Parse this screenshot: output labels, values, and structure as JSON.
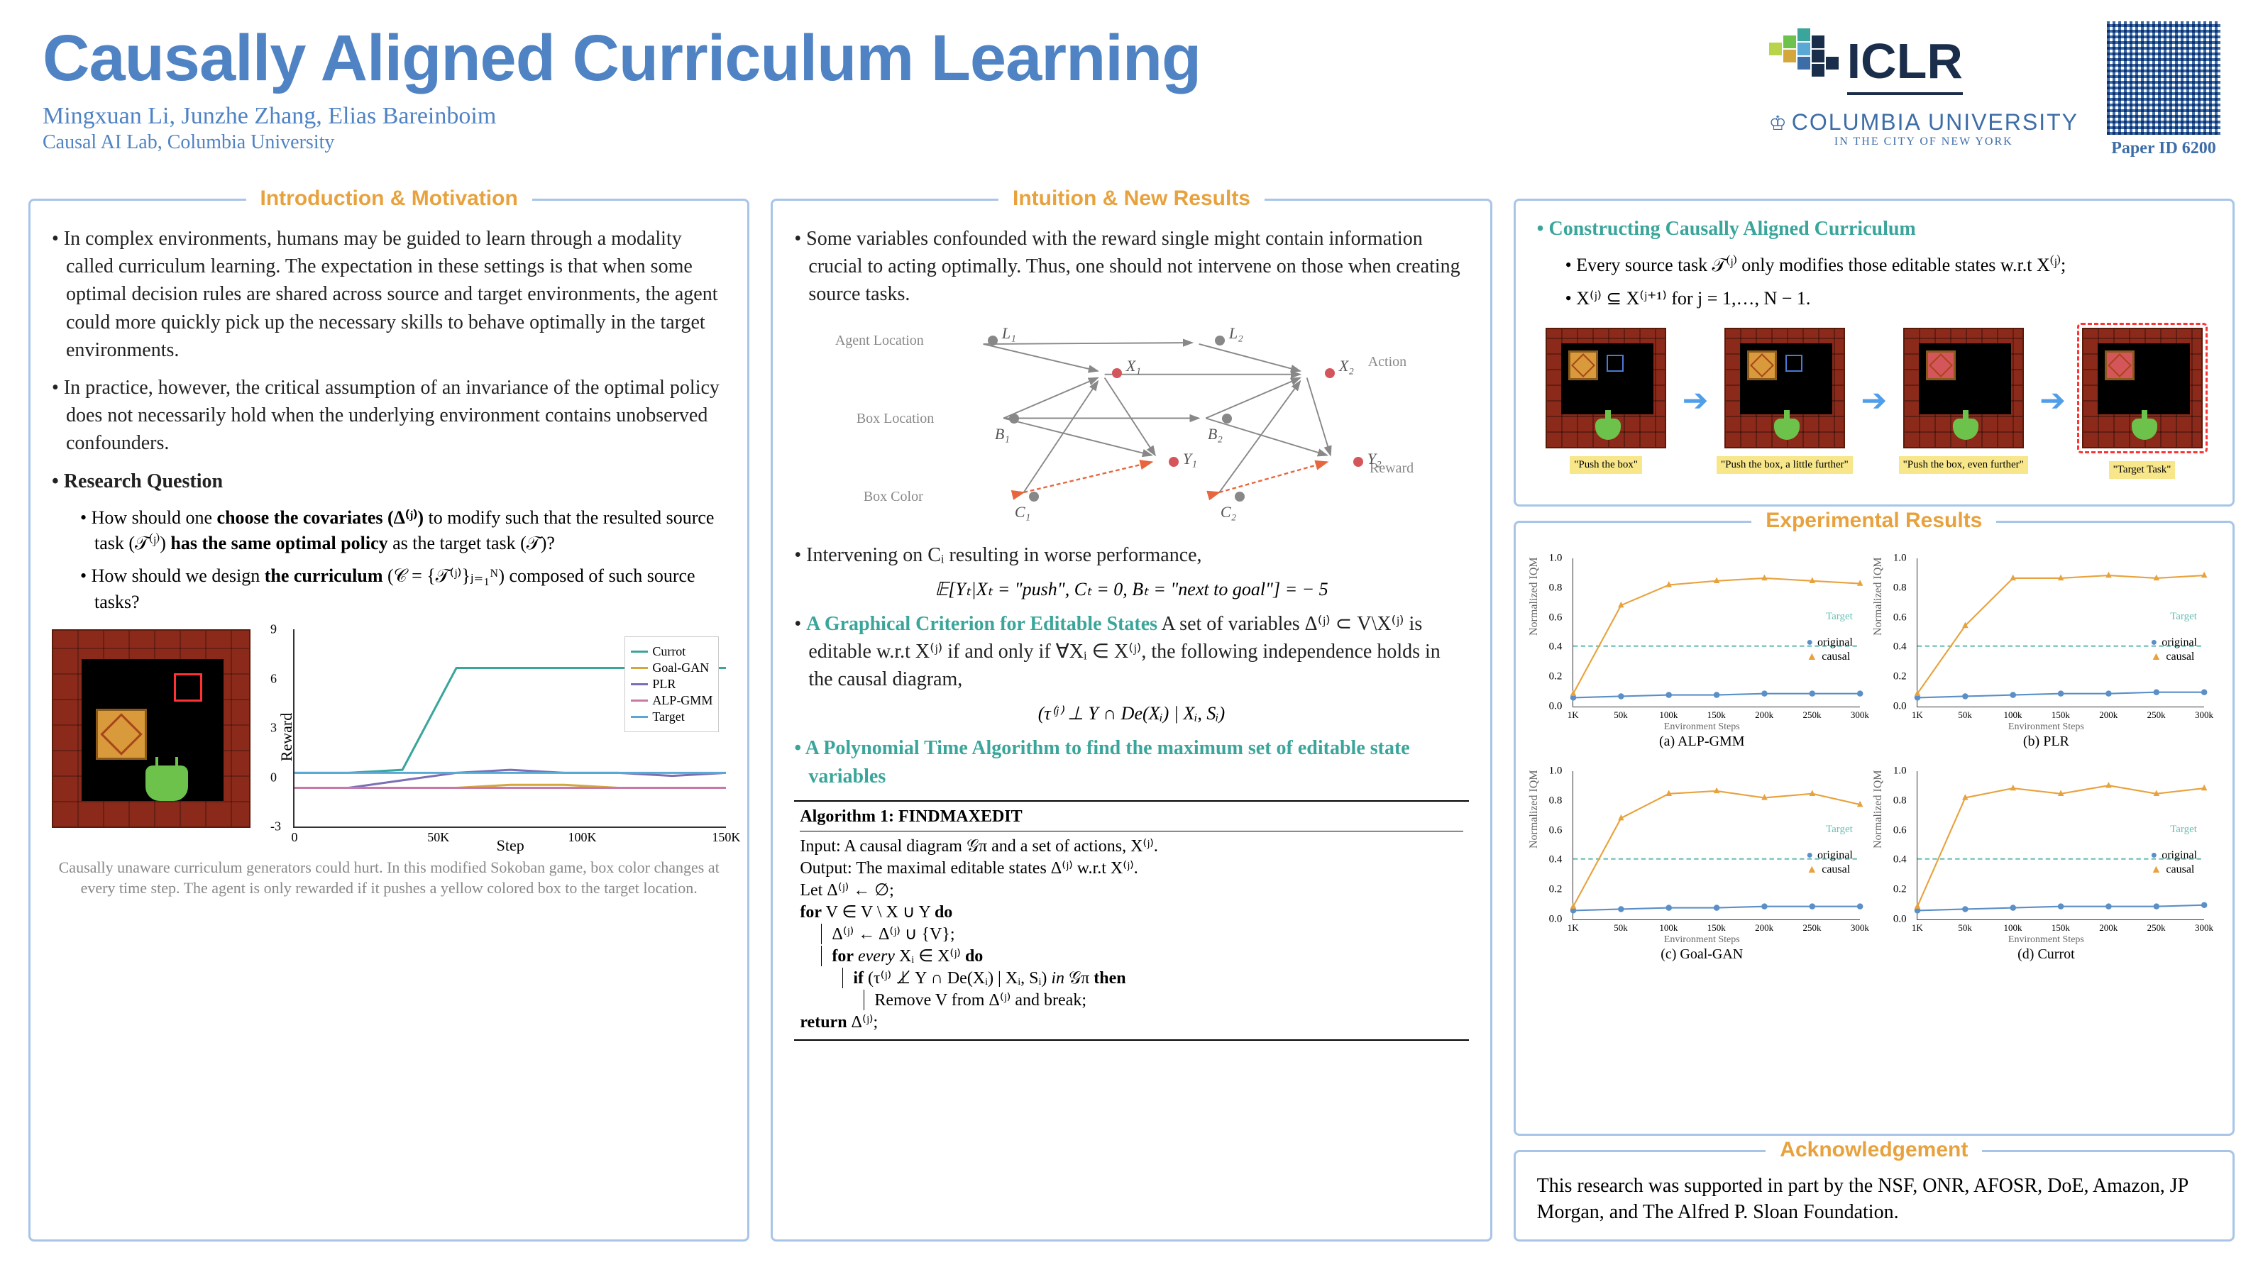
{
  "title": "Causally Aligned Curriculum Learning",
  "authors": "Mingxuan Li, Junzhe Zhang, Elias Bareinboim",
  "affiliation": "Causal AI Lab, Columbia University",
  "conference": "ICLR",
  "university_main": "COLUMBIA UNIVERSITY",
  "university_sub": "IN THE CITY OF NEW YORK",
  "paper_id": "Paper ID 6200",
  "colors": {
    "accent_blue": "#4f83c4",
    "section_orange": "#e8a23d",
    "section_teal": "#3aa59a",
    "border": "#a8c5e8",
    "brick": "#8b2a1a",
    "box": "#d89a3a",
    "agent": "#6cc24a",
    "target_red": "#ff3333",
    "chart_original": "#5a8fc7",
    "chart_causal": "#e8a23d",
    "chart_target_line": "#6bbfb5"
  },
  "sections": {
    "intro": {
      "title": "Introduction & Motivation",
      "p1": "In complex environments, humans may be guided to learn through a modality called curriculum learning. The expectation in these settings is that when some optimal decision rules are shared across source and target environments, the agent could more quickly pick up the necessary skills to behave optimally in the target environments.",
      "p2": "In practice, however, the critical assumption of an invariance of the optimal policy does not necessarily hold when the underlying environment contains unobserved confounders.",
      "rq_title": "Research Question",
      "rq1_a": "How should one ",
      "rq1_b": "choose the covariates (Δ⁽ʲ⁾)",
      "rq1_c": " to modify such that the resulted source task (𝒯⁽ʲ⁾) ",
      "rq1_d": "has the same optimal policy",
      "rq1_e": " as the target task (𝒯)?",
      "rq2_a": "How should we design ",
      "rq2_b": "the curriculum",
      "rq2_c": " (𝒞 = {𝒯⁽ʲ⁾}ⱼ₌₁ᴺ) composed of such source tasks?",
      "caption": "Causally unaware curriculum generators could hurt. In this modified Sokoban game, box color changes at every time step. The agent is only rewarded if it pushes a yellow colored box to the target location."
    },
    "intuition": {
      "title": "Intuition & New Results",
      "p1": "Some variables confounded with the reward single might contain information crucial to acting optimally. Thus, one should not intervene on those when creating source tasks.",
      "graph_labels": {
        "agent_loc": "Agent Location",
        "box_loc": "Box Location",
        "box_color": "Box Color",
        "action": "Action",
        "reward": "Reward"
      },
      "p2": "Intervening on Cᵢ resulting in worse performance,",
      "eq1": "𝔼[Yₜ|Xₜ = \"push\", Cₜ = 0, Bₜ = \"next to goal\"] = − 5",
      "crit_title": "A Graphical Criterion for Editable States",
      "crit_text": " A set of variables Δ⁽ʲ⁾ ⊂ V\\X⁽ʲ⁾ is editable w.r.t X⁽ʲ⁾ if and only if  ∀Xᵢ ∈ X⁽ʲ⁾, the following independence holds in the causal diagram,",
      "eq2": "(τ⁽ʲ⁾ ⊥ Y ∩ De(Xᵢ) | Xᵢ, Sᵢ)",
      "alg_title": "A Polynomial Time Algorithm to find the maximum set of editable state variables",
      "alg": {
        "name": "Algorithm 1: FINDMAXEDIT",
        "input": "Input: A causal diagram 𝒢π and a set of actions, X⁽ʲ⁾.",
        "output": "Output: The maximal editable states Δ⁽ʲ⁾ w.r.t X⁽ʲ⁾.",
        "l1": "Let Δ⁽ʲ⁾ ← ∅;",
        "l2": "for V ∈ V \\ X ∪ Y do",
        "l3": "Δ⁽ʲ⁾ ← Δ⁽ʲ⁾ ∪ {V};",
        "l4": "for every Xᵢ ∈ X⁽ʲ⁾ do",
        "l5": "if (τ⁽ʲ⁾ ⊥̸ Y ∩ De(Xᵢ) | Xᵢ, Sᵢ)  in 𝒢π then",
        "l6": "Remove V from Δ⁽ʲ⁾ and break;",
        "l7": "return Δ⁽ʲ⁾;"
      }
    },
    "construct": {
      "title_teal": "Constructing Causally Aligned Curriculum",
      "b1": "Every source task 𝒯⁽ʲ⁾ only modifies those editable states w.r.t X⁽ʲ⁾;",
      "b2": "X⁽ʲ⁾ ⊆ X⁽ʲ⁺¹⁾ for j = 1,…, N − 1.",
      "items": [
        {
          "cap": "\"Push the box\""
        },
        {
          "cap": "\"Push the box, a little further\""
        },
        {
          "cap": "\"Push the box, even further\""
        },
        {
          "cap": "\"Target Task\""
        }
      ]
    },
    "results": {
      "title": "Experimental Results",
      "ylabel": "Normalized IQM",
      "xlabel": "Environment Steps",
      "xticks": [
        "1K",
        "50k",
        "100k",
        "150k",
        "200k",
        "250k",
        "300k"
      ],
      "yticks": [
        "0.0",
        "0.2",
        "0.4",
        "0.6",
        "0.8",
        "1.0"
      ],
      "target_label": "Target",
      "legend": {
        "original": "original",
        "causal": "causal"
      },
      "charts": [
        {
          "caption": "(a) ALP-GMM",
          "target_y": 0.4,
          "original": [
            0.02,
            0.03,
            0.04,
            0.04,
            0.05,
            0.05,
            0.05
          ],
          "causal": [
            0.05,
            0.7,
            0.85,
            0.88,
            0.9,
            0.88,
            0.86
          ]
        },
        {
          "caption": "(b) PLR",
          "target_y": 0.4,
          "original": [
            0.02,
            0.03,
            0.04,
            0.05,
            0.05,
            0.06,
            0.06
          ],
          "causal": [
            0.05,
            0.55,
            0.9,
            0.9,
            0.92,
            0.9,
            0.92
          ]
        },
        {
          "caption": "(c) Goal-GAN",
          "target_y": 0.4,
          "original": [
            0.02,
            0.03,
            0.04,
            0.04,
            0.05,
            0.05,
            0.05
          ],
          "causal": [
            0.05,
            0.7,
            0.88,
            0.9,
            0.85,
            0.88,
            0.8
          ]
        },
        {
          "caption": "(d) Currot",
          "target_y": 0.4,
          "original": [
            0.02,
            0.03,
            0.04,
            0.05,
            0.05,
            0.05,
            0.06
          ],
          "causal": [
            0.05,
            0.85,
            0.92,
            0.88,
            0.94,
            0.88,
            0.92
          ]
        }
      ]
    },
    "ack": {
      "title": "Acknowledgement",
      "text": "This research was supported in part by the NSF, ONR, AFOSR, DoE, Amazon, JP Morgan, and The Alfred P. Sloan Foundation."
    }
  },
  "reward_chart": {
    "ylabel": "Reward",
    "xlabel": "Step",
    "xticks": [
      "0",
      "50K",
      "100K",
      "150K"
    ],
    "yticks": [
      "-3",
      "0",
      "3",
      "6",
      "9"
    ],
    "ylim": [
      -3,
      9
    ],
    "series": [
      {
        "name": "Currot",
        "color": "#3aa59a",
        "values": [
          0,
          0,
          0.2,
          7,
          7,
          7,
          7,
          7,
          7
        ]
      },
      {
        "name": "Goal-GAN",
        "color": "#d4a73d",
        "values": [
          -1,
          -1,
          -1,
          -1,
          -0.8,
          -0.8,
          -1,
          -1,
          -1
        ]
      },
      {
        "name": "PLR",
        "color": "#7a6fb5",
        "values": [
          -1,
          -1,
          -0.5,
          0,
          0.2,
          0,
          0,
          -0.2,
          0
        ]
      },
      {
        "name": "ALP-GMM",
        "color": "#c77aa8",
        "values": [
          -1,
          -1,
          -1,
          -1,
          -1,
          -1,
          -1,
          -1,
          -1
        ]
      },
      {
        "name": "Target",
        "color": "#5aa8d4",
        "values": [
          0,
          0,
          0,
          0,
          0,
          0,
          0,
          0,
          0
        ]
      }
    ]
  }
}
